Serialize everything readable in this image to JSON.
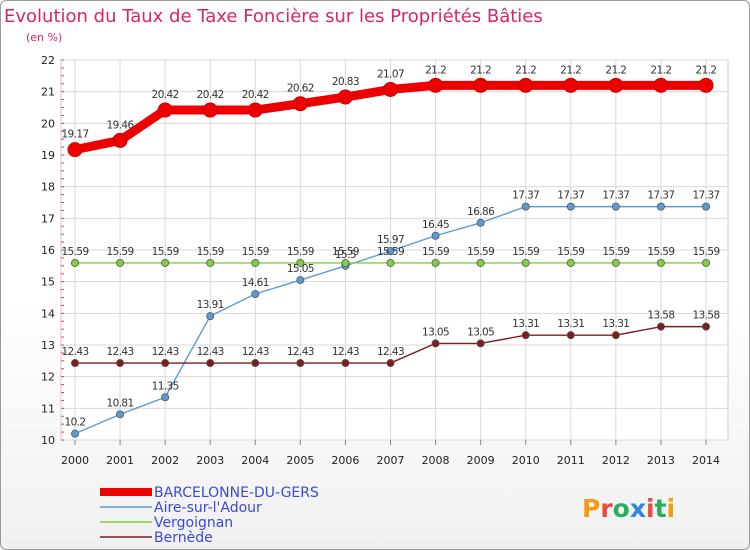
{
  "chart_data": {
    "type": "line",
    "title": "Evolution du Taux de Taxe Foncière sur les Propriétés Bâties",
    "subtitle": "(en %)",
    "x": [
      "2000",
      "2001",
      "2002",
      "2003",
      "2004",
      "2005",
      "2006",
      "2007",
      "2008",
      "2009",
      "2010",
      "2011",
      "2012",
      "2013",
      "2014"
    ],
    "ylim": [
      10,
      22
    ],
    "yticks": [
      10,
      11,
      12,
      13,
      14,
      15,
      16,
      17,
      18,
      19,
      20,
      21,
      22
    ],
    "grid": true,
    "series": [
      {
        "name": "BARCELONNE-DU-GERS",
        "color": "#ee0000",
        "bold": true,
        "values": [
          19.17,
          19.46,
          20.42,
          20.42,
          20.42,
          20.62,
          20.83,
          21.07,
          21.2,
          21.2,
          21.2,
          21.2,
          21.2,
          21.2,
          21.2
        ],
        "labels": [
          "19.17",
          "19.46",
          "20.42",
          "20.42",
          "20.42",
          "20.62",
          "20.83",
          "21.07",
          "21.2",
          "21.2",
          "21.2",
          "21.2",
          "21.2",
          "21.2",
          "21.2"
        ]
      },
      {
        "name": "Aire-sur-l'Adour",
        "color": "#5b9bd5",
        "bold": false,
        "values": [
          10.2,
          10.81,
          11.35,
          13.91,
          14.61,
          15.05,
          15.5,
          15.97,
          16.45,
          16.86,
          17.37,
          17.37,
          17.37,
          17.37,
          17.37
        ],
        "labels": [
          "10.2",
          "10.81",
          "11.35",
          "13.91",
          "14.61",
          "15.05",
          "15.5",
          "15.97",
          "16.45",
          "16.86",
          "17.37",
          "17.37",
          "17.37",
          "17.37",
          "17.37"
        ]
      },
      {
        "name": "Vergoignan",
        "color": "#7fd13b",
        "bold": false,
        "values": [
          15.59,
          15.59,
          15.59,
          15.59,
          15.59,
          15.59,
          15.59,
          15.59,
          15.59,
          15.59,
          15.59,
          15.59,
          15.59,
          15.59,
          15.59
        ],
        "labels": [
          "15.59",
          "15.59",
          "15.59",
          "15.59",
          "15.59",
          "15.59",
          "15.59",
          "15.59",
          "15.59",
          "15.59",
          "15.59",
          "15.59",
          "15.59",
          "15.59",
          "15.59"
        ]
      },
      {
        "name": "Bernède",
        "color": "#7a1e1e",
        "bold": false,
        "values": [
          12.43,
          12.43,
          12.43,
          12.43,
          12.43,
          12.43,
          12.43,
          12.43,
          13.05,
          13.05,
          13.31,
          13.31,
          13.31,
          13.58,
          13.58
        ],
        "labels": [
          "12.43",
          "12.43",
          "12.43",
          "12.43",
          "12.43",
          "12.43",
          "12.43",
          "12.43",
          "13.05",
          "13.05",
          "13.31",
          "13.31",
          "13.31",
          "13.58",
          "13.58"
        ]
      }
    ]
  },
  "logo": {
    "text": "Proxiti",
    "letter_colors": [
      "#f39c12",
      "#e74c3c",
      "#27ae60",
      "#2e86de",
      "#e74c3c",
      "#27ae60",
      "#f39c12"
    ]
  }
}
